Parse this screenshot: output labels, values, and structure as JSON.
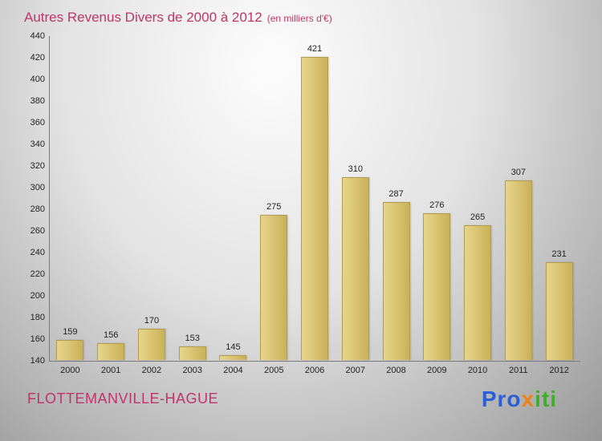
{
  "title": {
    "text": "Autres Revenus Divers de 2000 à 2012",
    "subtitle": "(en milliers d'€)"
  },
  "footer": {
    "location": "FLOTTEMANVILLE-HAGUE"
  },
  "logo": {
    "text": "Proxiti",
    "letters": [
      {
        "ch": "P",
        "color": "#2b5fd9"
      },
      {
        "ch": "r",
        "color": "#2b5fd9"
      },
      {
        "ch": "o",
        "color": "#2b5fd9"
      },
      {
        "ch": "x",
        "color": "#f08019"
      },
      {
        "ch": "i",
        "color": "#3fae2a"
      },
      {
        "ch": "t",
        "color": "#3fae2a"
      },
      {
        "ch": "i",
        "color": "#3fae2a"
      }
    ]
  },
  "colors": {
    "title": "#c03568",
    "bar": "#d8c270",
    "bar_border": "#b29c4d",
    "axis": "#7a7a7a",
    "tick_text": "#222222"
  },
  "chart_data": {
    "type": "bar",
    "title": "Autres Revenus Divers de 2000 à 2012",
    "subtitle": "(en milliers d'€)",
    "categories": [
      "2000",
      "2001",
      "2002",
      "2003",
      "2004",
      "2005",
      "2006",
      "2007",
      "2008",
      "2009",
      "2010",
      "2011",
      "2012"
    ],
    "values": [
      159,
      156,
      170,
      153,
      145,
      275,
      421,
      310,
      287,
      276,
      265,
      307,
      231
    ],
    "xlabel": "",
    "ylabel": "",
    "ylim": [
      140,
      440
    ],
    "ytick_step": 20,
    "grid": false,
    "legend": false,
    "data_labels": true
  }
}
